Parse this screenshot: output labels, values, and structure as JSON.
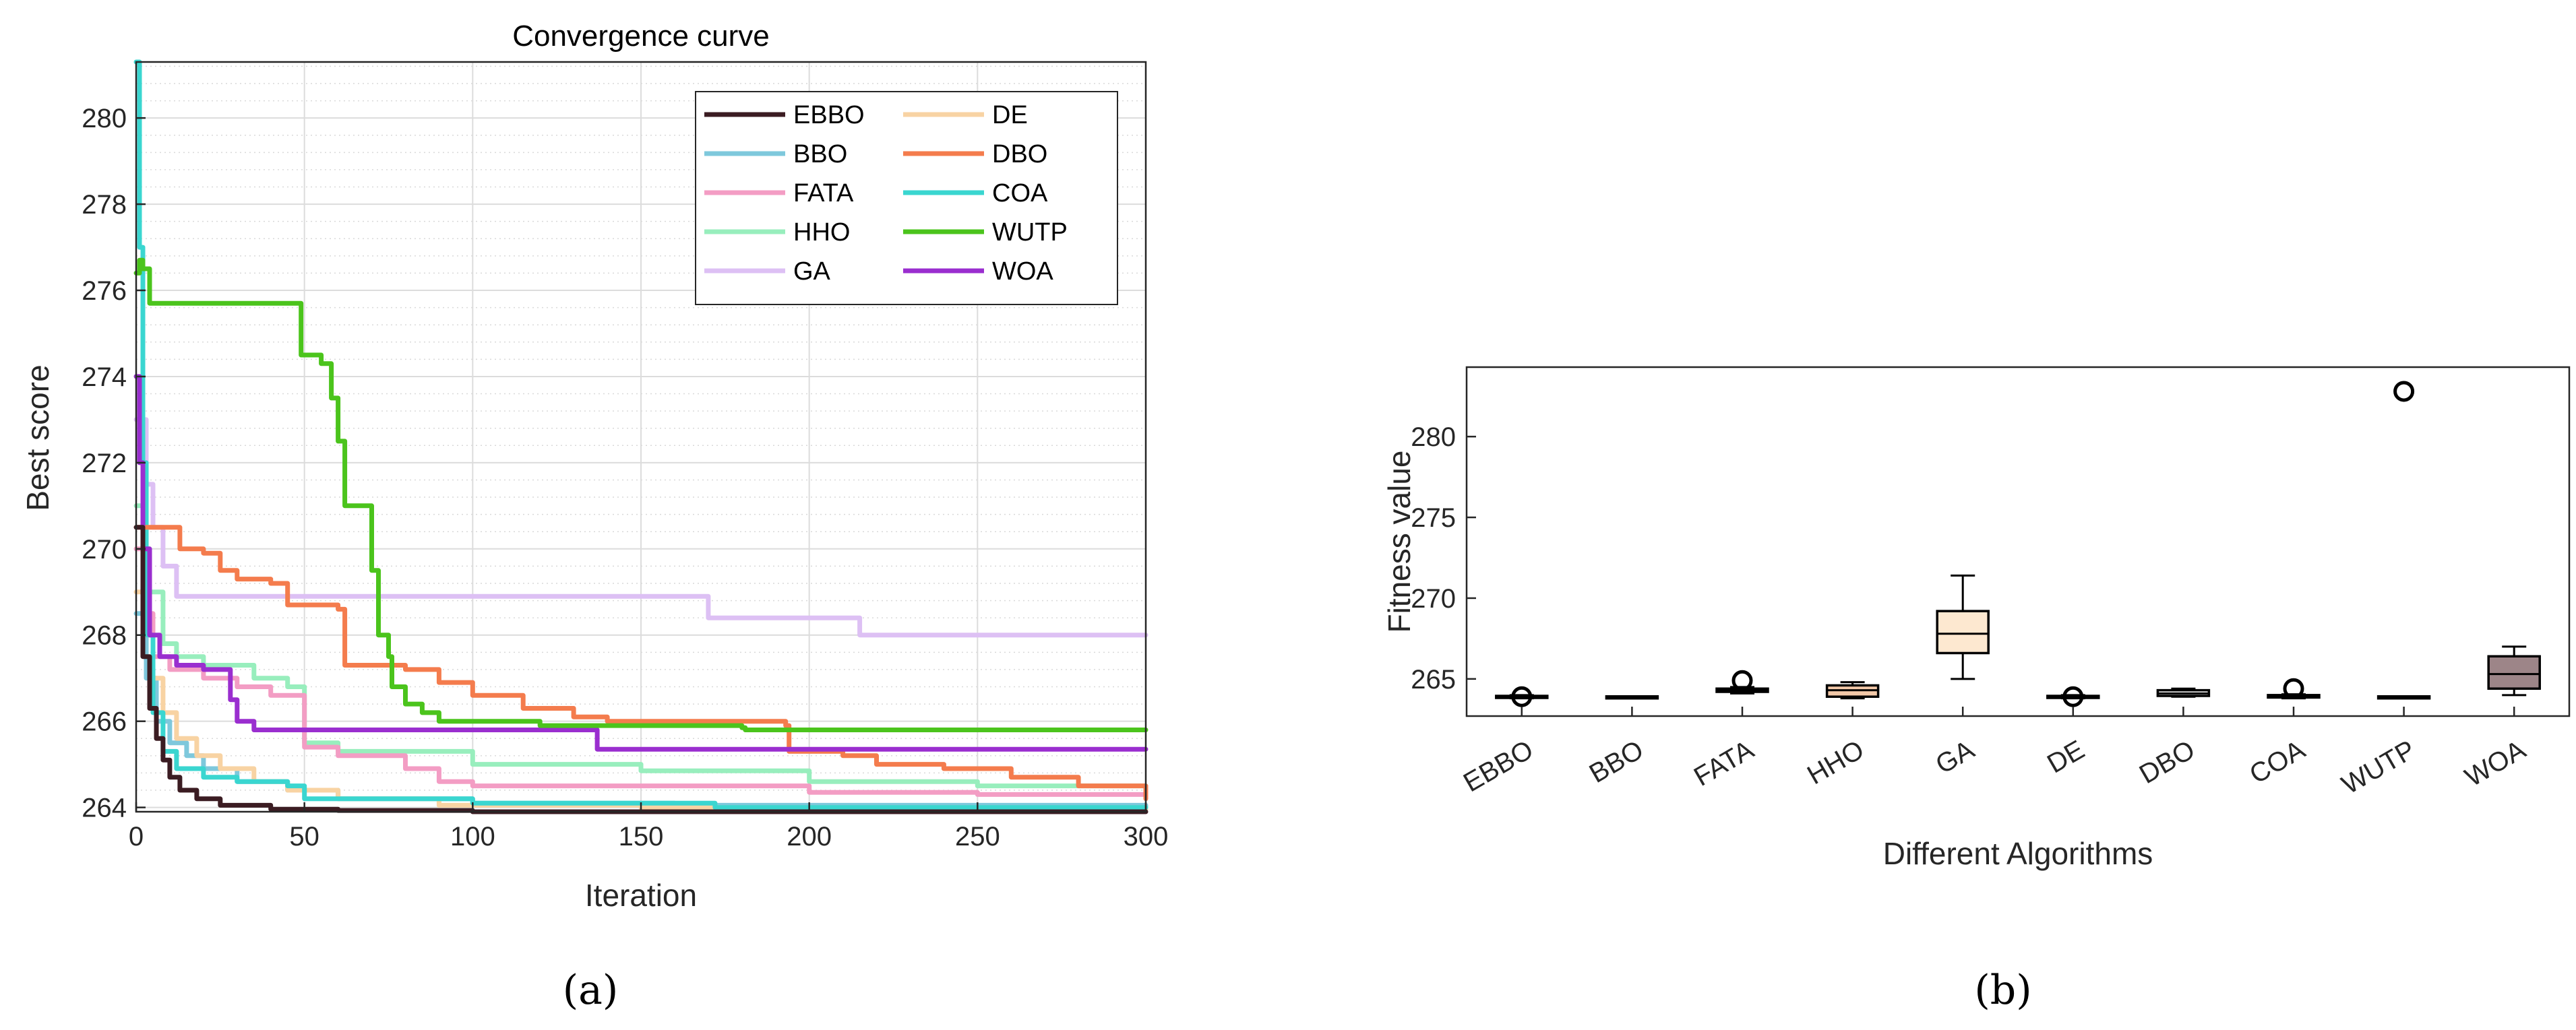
{
  "caption_a": "(a)",
  "caption_b": "(b)",
  "colors": {
    "EBBO": "#3b1c22",
    "BBO": "#7ec8dc",
    "FATA": "#f39dc4",
    "HHO": "#98eebd",
    "GA": "#ddc0f4",
    "DE": "#f8d3a3",
    "DBO": "#f47c4d",
    "COA": "#3ad6d0",
    "WUTP": "#4bc41c",
    "WOA": "#9a2ecf"
  },
  "chart_data": [
    {
      "type": "line",
      "title": "Convergence curve",
      "xlabel": "Iteration",
      "ylabel": "Best score",
      "xlim": [
        0,
        300
      ],
      "ylim": [
        263.9,
        281.3
      ],
      "xticks": [
        "0",
        "50",
        "100",
        "150",
        "200",
        "250",
        "300"
      ],
      "yticks": [
        "264",
        "266",
        "268",
        "270",
        "272",
        "274",
        "276",
        "278",
        "280"
      ],
      "grid": true,
      "legend_position": "top-right",
      "series": [
        {
          "name": "EBBO",
          "points": [
            [
              0,
              270.5
            ],
            [
              2,
              267.5
            ],
            [
              4,
              266.3
            ],
            [
              6,
              265.6
            ],
            [
              8,
              265.1
            ],
            [
              10,
              264.7
            ],
            [
              13,
              264.4
            ],
            [
              18,
              264.2
            ],
            [
              25,
              264.05
            ],
            [
              40,
              263.96
            ],
            [
              60,
              263.93
            ],
            [
              100,
              263.9
            ],
            [
              300,
              263.9
            ]
          ]
        },
        {
          "name": "BBO",
          "points": [
            [
              0,
              268.5
            ],
            [
              3,
              267
            ],
            [
              6,
              266
            ],
            [
              10,
              265.5
            ],
            [
              15,
              265.2
            ],
            [
              20,
              264.9
            ],
            [
              30,
              264.6
            ],
            [
              45,
              264.4
            ],
            [
              60,
              264.2
            ],
            [
              100,
              264.1
            ],
            [
              160,
              264.05
            ],
            [
              300,
              264.0
            ]
          ]
        },
        {
          "name": "FATA",
          "points": [
            [
              0,
              270
            ],
            [
              3,
              268.5
            ],
            [
              5,
              267.5
            ],
            [
              10,
              267.2
            ],
            [
              20,
              267.0
            ],
            [
              30,
              266.8
            ],
            [
              40,
              266.6
            ],
            [
              50,
              265.4
            ],
            [
              60,
              265.2
            ],
            [
              80,
              264.9
            ],
            [
              90,
              264.6
            ],
            [
              100,
              264.5
            ],
            [
              150,
              264.5
            ],
            [
              200,
              264.35
            ],
            [
              250,
              264.3
            ],
            [
              300,
              264.25
            ]
          ]
        },
        {
          "name": "HHO",
          "points": [
            [
              0,
              271
            ],
            [
              2,
              270
            ],
            [
              4,
              269
            ],
            [
              8,
              267.8
            ],
            [
              12,
              267.5
            ],
            [
              20,
              267.3
            ],
            [
              35,
              267.0
            ],
            [
              45,
              266.8
            ],
            [
              50,
              265.5
            ],
            [
              60,
              265.3
            ],
            [
              100,
              265.0
            ],
            [
              150,
              264.85
            ],
            [
              200,
              264.6
            ],
            [
              250,
              264.5
            ],
            [
              300,
              264.4
            ]
          ]
        },
        {
          "name": "GA",
          "points": [
            [
              0,
              273
            ],
            [
              3,
              271.5
            ],
            [
              5,
              270.5
            ],
            [
              8,
              269.6
            ],
            [
              12,
              268.9
            ],
            [
              60,
              268.9
            ],
            [
              120,
              268.9
            ],
            [
              165,
              268.9
            ],
            [
              170,
              268.4
            ],
            [
              210,
              268.4
            ],
            [
              215,
              268.0
            ],
            [
              300,
              268.0
            ]
          ]
        },
        {
          "name": "DE",
          "points": [
            [
              0,
              269
            ],
            [
              2,
              268
            ],
            [
              5,
              267
            ],
            [
              8,
              266.2
            ],
            [
              12,
              265.6
            ],
            [
              18,
              265.2
            ],
            [
              25,
              264.9
            ],
            [
              35,
              264.6
            ],
            [
              45,
              264.4
            ],
            [
              60,
              264.2
            ],
            [
              90,
              264.05
            ],
            [
              150,
              264.0
            ],
            [
              300,
              263.95
            ]
          ]
        },
        {
          "name": "DBO",
          "points": [
            [
              0,
              270.5
            ],
            [
              10,
              270.5
            ],
            [
              13,
              270.0
            ],
            [
              20,
              269.9
            ],
            [
              25,
              269.5
            ],
            [
              30,
              269.3
            ],
            [
              40,
              269.2
            ],
            [
              45,
              268.7
            ],
            [
              60,
              268.6
            ],
            [
              62,
              267.3
            ],
            [
              80,
              267.2
            ],
            [
              90,
              266.9
            ],
            [
              100,
              266.6
            ],
            [
              115,
              266.3
            ],
            [
              130,
              266.1
            ],
            [
              140,
              266.0
            ],
            [
              193,
              265.9
            ],
            [
              194,
              265.3
            ],
            [
              210,
              265.2
            ],
            [
              220,
              265.0
            ],
            [
              240,
              264.9
            ],
            [
              260,
              264.7
            ],
            [
              280,
              264.5
            ],
            [
              300,
              264.2
            ]
          ]
        },
        {
          "name": "COA",
          "points": [
            [
              0,
              281.3
            ],
            [
              1,
              277
            ],
            [
              2,
              272
            ],
            [
              3,
              268
            ],
            [
              5,
              266.2
            ],
            [
              8,
              265.3
            ],
            [
              12,
              264.9
            ],
            [
              20,
              264.7
            ],
            [
              30,
              264.6
            ],
            [
              45,
              264.5
            ],
            [
              50,
              264.2
            ],
            [
              100,
              264.1
            ],
            [
              170,
              264.1
            ],
            [
              172,
              264.0
            ],
            [
              300,
              264.0
            ]
          ]
        },
        {
          "name": "WUTP",
          "points": [
            [
              0,
              276.4
            ],
            [
              1,
              276.7
            ],
            [
              2,
              276.5
            ],
            [
              4,
              275.7
            ],
            [
              48,
              275.7
            ],
            [
              49,
              274.5
            ],
            [
              53,
              274.5
            ],
            [
              55,
              274.3
            ],
            [
              58,
              273.5
            ],
            [
              60,
              272.5
            ],
            [
              62,
              271.0
            ],
            [
              67,
              271.0
            ],
            [
              70,
              269.5
            ],
            [
              72,
              268.0
            ],
            [
              75,
              267.5
            ],
            [
              76,
              266.8
            ],
            [
              80,
              266.4
            ],
            [
              85,
              266.2
            ],
            [
              90,
              266.0
            ],
            [
              120,
              265.9
            ],
            [
              180,
              265.85
            ],
            [
              181,
              265.8
            ],
            [
              300,
              265.8
            ]
          ]
        },
        {
          "name": "WOA",
          "points": [
            [
              0,
              274
            ],
            [
              1,
              272
            ],
            [
              2,
              270
            ],
            [
              4,
              268
            ],
            [
              7,
              267.5
            ],
            [
              12,
              267.3
            ],
            [
              20,
              267.2
            ],
            [
              27,
              267.2
            ],
            [
              28,
              266.5
            ],
            [
              30,
              266.0
            ],
            [
              35,
              265.8
            ],
            [
              135,
              265.8
            ],
            [
              137,
              265.35
            ],
            [
              300,
              265.35
            ]
          ]
        }
      ]
    },
    {
      "type": "boxplot",
      "xlabel": "Different Algorithms",
      "ylabel": "Fitness value",
      "ylim": [
        262.7,
        284.3
      ],
      "yticks": [
        "265",
        "270",
        "275",
        "280"
      ],
      "grid": false,
      "categories": [
        "EBBO",
        "BBO",
        "FATA",
        "HHO",
        "GA",
        "DE",
        "DBO",
        "COA",
        "WUTP",
        "WOA"
      ],
      "boxes": [
        {
          "name": "EBBO",
          "q1": 263.85,
          "median": 263.9,
          "q3": 263.95,
          "whisker_low": 263.8,
          "whisker_high": 264.0,
          "outliers": [
            263.9
          ]
        },
        {
          "name": "BBO",
          "q1": 263.88,
          "median": 263.9,
          "q3": 263.92,
          "whisker_low": 263.87,
          "whisker_high": 263.93,
          "outliers": []
        },
        {
          "name": "FATA",
          "q1": 264.2,
          "median": 264.3,
          "q3": 264.4,
          "whisker_low": 264.1,
          "whisker_high": 264.5,
          "outliers": [
            264.9
          ]
        },
        {
          "name": "HHO",
          "q1": 263.9,
          "median": 264.3,
          "q3": 264.6,
          "whisker_low": 263.8,
          "whisker_high": 264.8,
          "outliers": []
        },
        {
          "name": "GA",
          "q1": 266.6,
          "median": 267.8,
          "q3": 269.2,
          "whisker_low": 265.0,
          "whisker_high": 271.4,
          "outliers": []
        },
        {
          "name": "DE",
          "q1": 263.85,
          "median": 263.9,
          "q3": 263.95,
          "whisker_low": 263.8,
          "whisker_high": 264.0,
          "outliers": [
            263.9
          ]
        },
        {
          "name": "DBO",
          "q1": 263.95,
          "median": 264.1,
          "q3": 264.3,
          "whisker_low": 263.9,
          "whisker_high": 264.4,
          "outliers": []
        },
        {
          "name": "COA",
          "q1": 263.85,
          "median": 263.95,
          "q3": 264.0,
          "whisker_low": 263.8,
          "whisker_high": 264.05,
          "outliers": [
            264.4
          ]
        },
        {
          "name": "WUTP",
          "q1": 263.88,
          "median": 263.9,
          "q3": 263.92,
          "whisker_low": 263.87,
          "whisker_high": 263.93,
          "outliers": [
            282.8
          ]
        },
        {
          "name": "WOA",
          "q1": 264.4,
          "median": 265.3,
          "q3": 266.4,
          "whisker_low": 264.0,
          "whisker_high": 267.0,
          "outliers": []
        }
      ],
      "box_colors": {
        "HHO": "#f2c8a8",
        "GA": "#fde8d0",
        "WOA": "#9d8588"
      }
    }
  ]
}
